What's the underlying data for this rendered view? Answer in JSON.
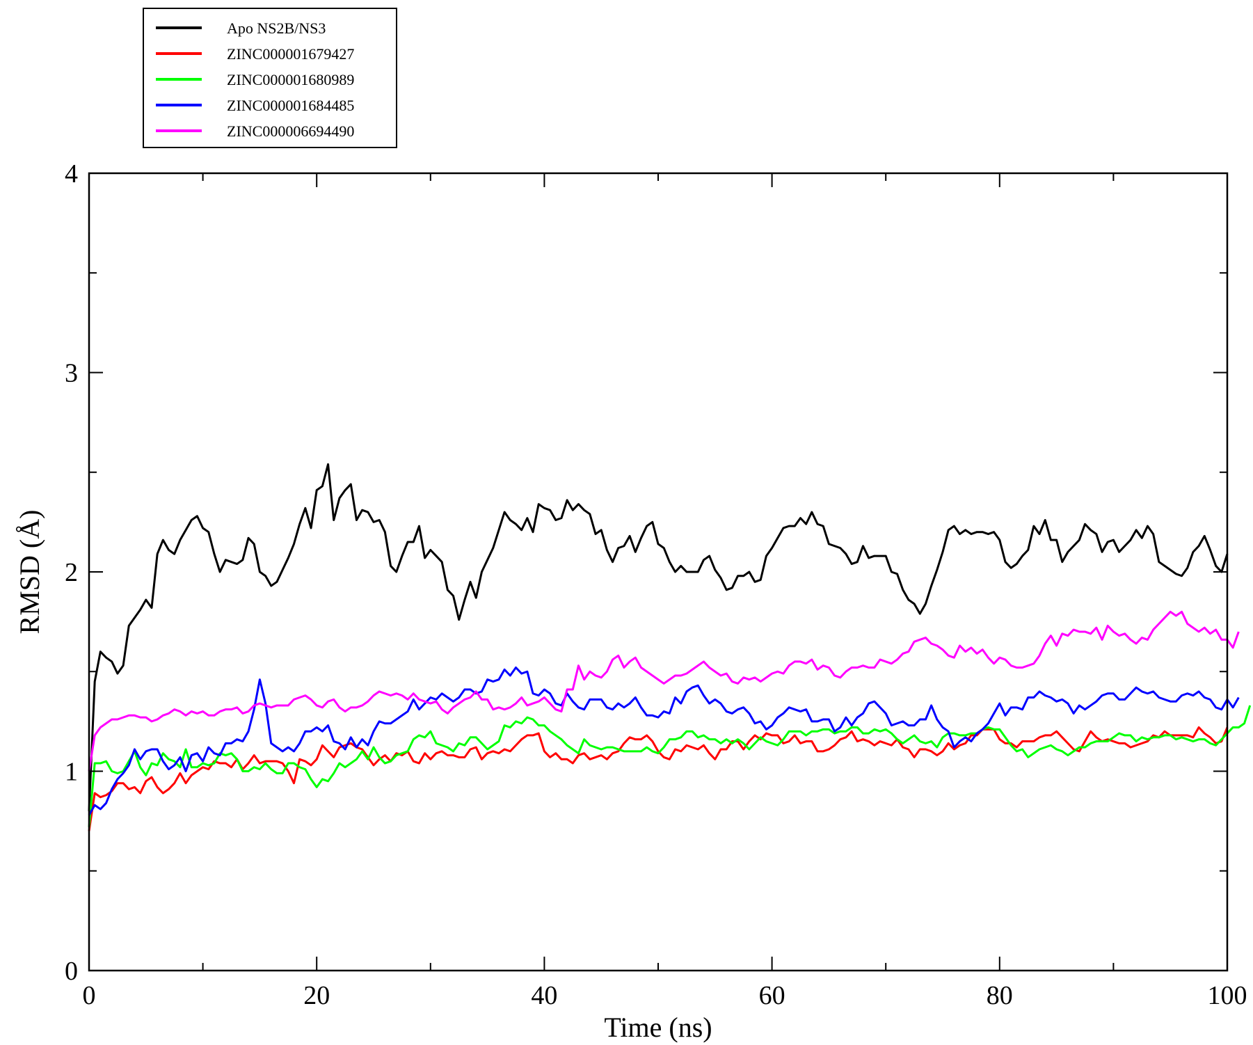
{
  "chart_data": {
    "type": "line",
    "title": "",
    "xlabel": "Time (ns)",
    "ylabel": "RMSD (Å)",
    "xlim": [
      0,
      100
    ],
    "ylim": [
      0,
      4
    ],
    "x_ticks": [
      "0",
      "20",
      "40",
      "60",
      "80",
      "100"
    ],
    "y_ticks": [
      "0",
      "1",
      "2",
      "3",
      "4"
    ],
    "x_step": 0.5,
    "legend_position": "top-left",
    "grid": false,
    "series": [
      {
        "name": "Apo NS2B/NS3",
        "color": "#000000",
        "values": [
          0.8,
          1.45,
          1.6,
          1.57,
          1.55,
          1.49,
          1.53,
          1.73,
          1.77,
          1.81,
          1.86,
          1.82,
          2.09,
          2.16,
          2.11,
          2.09,
          2.16,
          2.21,
          2.26,
          2.28,
          2.22,
          2.2,
          2.09,
          2.0,
          2.06,
          2.05,
          2.04,
          2.06,
          2.17,
          2.14,
          2.0,
          1.98,
          1.93,
          1.95,
          2.01,
          2.07,
          2.14,
          2.24,
          2.32,
          2.22,
          2.41,
          2.43,
          2.54,
          2.26,
          2.37,
          2.41,
          2.44,
          2.26,
          2.31,
          2.3,
          2.25,
          2.26,
          2.2,
          2.03,
          2.0,
          2.08,
          2.15,
          2.15,
          2.23,
          2.07,
          2.11,
          2.08,
          2.05,
          1.91,
          1.88,
          1.76,
          1.86,
          1.95,
          1.87,
          2.0,
          2.06,
          2.12,
          2.21,
          2.3,
          2.26,
          2.24,
          2.21,
          2.27,
          2.2,
          2.34,
          2.32,
          2.31,
          2.26,
          2.27,
          2.36,
          2.31,
          2.34,
          2.31,
          2.29,
          2.19,
          2.21,
          2.11,
          2.05,
          2.12,
          2.13,
          2.18,
          2.1,
          2.17,
          2.23,
          2.25,
          2.14,
          2.12,
          2.05,
          2.0,
          2.03,
          2.0,
          2.0,
          2.0,
          2.06,
          2.08,
          2.01,
          1.97,
          1.91,
          1.92,
          1.98,
          1.98,
          2.0,
          1.95,
          1.96,
          2.08,
          2.12,
          2.17,
          2.22,
          2.23,
          2.23,
          2.27,
          2.24,
          2.3,
          2.24,
          2.23,
          2.14,
          2.13,
          2.12,
          2.09,
          2.04,
          2.05,
          2.13,
          2.07,
          2.08,
          2.08,
          2.08,
          2.0,
          1.99,
          1.91,
          1.86,
          1.84,
          1.79,
          1.84,
          1.93,
          2.01,
          2.1,
          2.21,
          2.23,
          2.19,
          2.21,
          2.19,
          2.2,
          2.2,
          2.19,
          2.2,
          2.16,
          2.05,
          2.02,
          2.04,
          2.08,
          2.11,
          2.23,
          2.19,
          2.26,
          2.16,
          2.16,
          2.05,
          2.1,
          2.13,
          2.16,
          2.24,
          2.21,
          2.19,
          2.1,
          2.15,
          2.16,
          2.1,
          2.13,
          2.16,
          2.21,
          2.17,
          2.23,
          2.19,
          2.05,
          2.03,
          2.01,
          1.99,
          1.98,
          2.02,
          2.1,
          2.13,
          2.18,
          2.11,
          2.03,
          2.0,
          2.09
        ]
      },
      {
        "name": "ZINC000001679427",
        "color": "#ff0000",
        "values": [
          0.7,
          0.89,
          0.87,
          0.88,
          0.9,
          0.94,
          0.94,
          0.91,
          0.92,
          0.89,
          0.95,
          0.97,
          0.92,
          0.89,
          0.91,
          0.94,
          0.99,
          0.94,
          0.98,
          1.0,
          1.02,
          1.01,
          1.05,
          1.04,
          1.04,
          1.02,
          1.06,
          1.01,
          1.04,
          1.08,
          1.04,
          1.05,
          1.05,
          1.05,
          1.04,
          1.0,
          0.94,
          1.06,
          1.05,
          1.03,
          1.06,
          1.13,
          1.1,
          1.07,
          1.12,
          1.13,
          1.14,
          1.12,
          1.11,
          1.07,
          1.03,
          1.06,
          1.08,
          1.05,
          1.09,
          1.08,
          1.1,
          1.05,
          1.04,
          1.09,
          1.06,
          1.09,
          1.1,
          1.08,
          1.08,
          1.07,
          1.07,
          1.11,
          1.12,
          1.06,
          1.09,
          1.1,
          1.09,
          1.11,
          1.1,
          1.13,
          1.16,
          1.18,
          1.18,
          1.19,
          1.1,
          1.07,
          1.09,
          1.06,
          1.06,
          1.04,
          1.08,
          1.09,
          1.06,
          1.07,
          1.08,
          1.06,
          1.09,
          1.1,
          1.14,
          1.17,
          1.16,
          1.16,
          1.18,
          1.15,
          1.1,
          1.07,
          1.06,
          1.11,
          1.1,
          1.13,
          1.12,
          1.11,
          1.13,
          1.09,
          1.06,
          1.11,
          1.11,
          1.15,
          1.15,
          1.11,
          1.15,
          1.18,
          1.16,
          1.19,
          1.18,
          1.18,
          1.14,
          1.15,
          1.18,
          1.14,
          1.15,
          1.15,
          1.1,
          1.1,
          1.11,
          1.13,
          1.16,
          1.17,
          1.2,
          1.15,
          1.16,
          1.15,
          1.13,
          1.15,
          1.14,
          1.13,
          1.16,
          1.12,
          1.11,
          1.07,
          1.11,
          1.11,
          1.1,
          1.08,
          1.1,
          1.14,
          1.11,
          1.13,
          1.14,
          1.18,
          1.18,
          1.21,
          1.21,
          1.21,
          1.16,
          1.14,
          1.14,
          1.12,
          1.15,
          1.15,
          1.15,
          1.17,
          1.18,
          1.18,
          1.2,
          1.17,
          1.14,
          1.11,
          1.1,
          1.15,
          1.2,
          1.17,
          1.15,
          1.16,
          1.15,
          1.14,
          1.14,
          1.12,
          1.13,
          1.14,
          1.15,
          1.18,
          1.17,
          1.2,
          1.18,
          1.18,
          1.18,
          1.18,
          1.17,
          1.22,
          1.19,
          1.17,
          1.14,
          1.15,
          1.22
        ]
      },
      {
        "name": "ZINC000001680989",
        "color": "#00ff00",
        "values": [
          0.72,
          1.04,
          1.04,
          1.05,
          1.0,
          0.99,
          1.0,
          1.05,
          1.1,
          1.02,
          0.98,
          1.04,
          1.03,
          1.09,
          1.06,
          1.05,
          1.02,
          1.11,
          1.02,
          1.02,
          1.04,
          1.03,
          1.04,
          1.09,
          1.08,
          1.09,
          1.06,
          1.0,
          1.0,
          1.02,
          1.01,
          1.04,
          1.01,
          0.99,
          0.99,
          1.04,
          1.04,
          1.02,
          1.01,
          0.96,
          0.92,
          0.96,
          0.95,
          0.99,
          1.04,
          1.02,
          1.04,
          1.06,
          1.1,
          1.06,
          1.12,
          1.07,
          1.04,
          1.05,
          1.08,
          1.09,
          1.1,
          1.16,
          1.18,
          1.17,
          1.2,
          1.14,
          1.13,
          1.12,
          1.1,
          1.14,
          1.13,
          1.17,
          1.17,
          1.14,
          1.11,
          1.13,
          1.15,
          1.23,
          1.22,
          1.25,
          1.24,
          1.27,
          1.26,
          1.23,
          1.23,
          1.2,
          1.18,
          1.16,
          1.13,
          1.11,
          1.09,
          1.16,
          1.13,
          1.12,
          1.11,
          1.12,
          1.12,
          1.11,
          1.1,
          1.1,
          1.1,
          1.1,
          1.12,
          1.1,
          1.09,
          1.12,
          1.16,
          1.16,
          1.17,
          1.2,
          1.2,
          1.17,
          1.18,
          1.16,
          1.16,
          1.14,
          1.16,
          1.14,
          1.16,
          1.14,
          1.11,
          1.14,
          1.17,
          1.15,
          1.14,
          1.13,
          1.16,
          1.2,
          1.2,
          1.2,
          1.18,
          1.2,
          1.2,
          1.21,
          1.21,
          1.19,
          1.2,
          1.2,
          1.22,
          1.22,
          1.19,
          1.19,
          1.21,
          1.2,
          1.21,
          1.19,
          1.16,
          1.14,
          1.16,
          1.18,
          1.15,
          1.14,
          1.15,
          1.12,
          1.17,
          1.19,
          1.19,
          1.18,
          1.18,
          1.19,
          1.19,
          1.21,
          1.22,
          1.21,
          1.21,
          1.17,
          1.13,
          1.1,
          1.11,
          1.07,
          1.09,
          1.11,
          1.12,
          1.13,
          1.11,
          1.1,
          1.08,
          1.1,
          1.12,
          1.12,
          1.14,
          1.15,
          1.15,
          1.15,
          1.17,
          1.19,
          1.18,
          1.18,
          1.15,
          1.17,
          1.16,
          1.17,
          1.17,
          1.18,
          1.18,
          1.16,
          1.17,
          1.16,
          1.15,
          1.16,
          1.16,
          1.14,
          1.13,
          1.16,
          1.19,
          1.22,
          1.22,
          1.24,
          1.33
        ]
      },
      {
        "name": "ZINC000001684485",
        "color": "#0000ff",
        "values": [
          0.78,
          0.83,
          0.81,
          0.84,
          0.91,
          0.96,
          0.99,
          1.03,
          1.11,
          1.06,
          1.1,
          1.11,
          1.11,
          1.05,
          1.01,
          1.03,
          1.07,
          1.0,
          1.08,
          1.09,
          1.05,
          1.12,
          1.09,
          1.08,
          1.14,
          1.14,
          1.16,
          1.15,
          1.2,
          1.31,
          1.46,
          1.34,
          1.14,
          1.12,
          1.1,
          1.12,
          1.1,
          1.14,
          1.2,
          1.2,
          1.22,
          1.2,
          1.23,
          1.15,
          1.14,
          1.11,
          1.17,
          1.12,
          1.16,
          1.13,
          1.2,
          1.25,
          1.24,
          1.24,
          1.26,
          1.28,
          1.3,
          1.36,
          1.31,
          1.34,
          1.37,
          1.36,
          1.39,
          1.37,
          1.35,
          1.37,
          1.41,
          1.41,
          1.39,
          1.4,
          1.46,
          1.45,
          1.46,
          1.51,
          1.48,
          1.52,
          1.49,
          1.5,
          1.39,
          1.38,
          1.41,
          1.39,
          1.34,
          1.33,
          1.39,
          1.35,
          1.32,
          1.31,
          1.36,
          1.36,
          1.36,
          1.32,
          1.31,
          1.34,
          1.32,
          1.34,
          1.37,
          1.32,
          1.28,
          1.28,
          1.27,
          1.3,
          1.29,
          1.37,
          1.34,
          1.4,
          1.42,
          1.43,
          1.38,
          1.34,
          1.36,
          1.34,
          1.3,
          1.29,
          1.31,
          1.32,
          1.29,
          1.24,
          1.25,
          1.21,
          1.23,
          1.27,
          1.29,
          1.32,
          1.31,
          1.3,
          1.31,
          1.25,
          1.25,
          1.26,
          1.26,
          1.2,
          1.22,
          1.27,
          1.23,
          1.27,
          1.29,
          1.34,
          1.35,
          1.32,
          1.29,
          1.23,
          1.24,
          1.25,
          1.23,
          1.23,
          1.26,
          1.26,
          1.33,
          1.26,
          1.22,
          1.2,
          1.12,
          1.15,
          1.17,
          1.15,
          1.19,
          1.21,
          1.24,
          1.29,
          1.34,
          1.28,
          1.32,
          1.32,
          1.31,
          1.37,
          1.37,
          1.4,
          1.38,
          1.37,
          1.35,
          1.36,
          1.34,
          1.29,
          1.33,
          1.31,
          1.33,
          1.35,
          1.38,
          1.39,
          1.39,
          1.36,
          1.36,
          1.39,
          1.42,
          1.4,
          1.39,
          1.4,
          1.37,
          1.36,
          1.35,
          1.35,
          1.38,
          1.39,
          1.38,
          1.4,
          1.37,
          1.36,
          1.32,
          1.31,
          1.36,
          1.32,
          1.37
        ]
      },
      {
        "name": "ZINC000006694490",
        "color": "#ff00ff",
        "values": [
          1.0,
          1.18,
          1.22,
          1.24,
          1.26,
          1.26,
          1.27,
          1.28,
          1.28,
          1.27,
          1.27,
          1.25,
          1.26,
          1.28,
          1.29,
          1.31,
          1.3,
          1.28,
          1.3,
          1.29,
          1.3,
          1.28,
          1.28,
          1.3,
          1.31,
          1.31,
          1.32,
          1.29,
          1.3,
          1.33,
          1.34,
          1.33,
          1.32,
          1.33,
          1.33,
          1.33,
          1.36,
          1.37,
          1.38,
          1.36,
          1.33,
          1.32,
          1.35,
          1.36,
          1.32,
          1.3,
          1.32,
          1.32,
          1.33,
          1.35,
          1.38,
          1.4,
          1.39,
          1.38,
          1.39,
          1.38,
          1.36,
          1.39,
          1.36,
          1.35,
          1.34,
          1.35,
          1.31,
          1.29,
          1.32,
          1.34,
          1.36,
          1.37,
          1.4,
          1.36,
          1.36,
          1.31,
          1.32,
          1.31,
          1.32,
          1.34,
          1.37,
          1.33,
          1.34,
          1.35,
          1.37,
          1.34,
          1.31,
          1.3,
          1.41,
          1.41,
          1.53,
          1.46,
          1.5,
          1.48,
          1.47,
          1.5,
          1.56,
          1.58,
          1.52,
          1.55,
          1.57,
          1.52,
          1.5,
          1.48,
          1.46,
          1.44,
          1.46,
          1.48,
          1.48,
          1.49,
          1.51,
          1.53,
          1.55,
          1.52,
          1.5,
          1.48,
          1.49,
          1.45,
          1.44,
          1.47,
          1.46,
          1.47,
          1.45,
          1.47,
          1.49,
          1.5,
          1.49,
          1.53,
          1.55,
          1.55,
          1.54,
          1.56,
          1.51,
          1.53,
          1.52,
          1.48,
          1.47,
          1.5,
          1.52,
          1.52,
          1.53,
          1.52,
          1.52,
          1.56,
          1.55,
          1.54,
          1.56,
          1.59,
          1.6,
          1.65,
          1.66,
          1.67,
          1.64,
          1.63,
          1.61,
          1.58,
          1.57,
          1.63,
          1.6,
          1.62,
          1.59,
          1.61,
          1.57,
          1.54,
          1.57,
          1.56,
          1.53,
          1.52,
          1.52,
          1.53,
          1.54,
          1.58,
          1.64,
          1.68,
          1.63,
          1.69,
          1.68,
          1.71,
          1.7,
          1.7,
          1.69,
          1.72,
          1.66,
          1.73,
          1.7,
          1.68,
          1.69,
          1.66,
          1.64,
          1.67,
          1.66,
          1.71,
          1.74,
          1.77,
          1.8,
          1.78,
          1.8,
          1.74,
          1.72,
          1.7,
          1.72,
          1.69,
          1.71,
          1.66,
          1.66,
          1.62,
          1.7
        ]
      }
    ]
  }
}
